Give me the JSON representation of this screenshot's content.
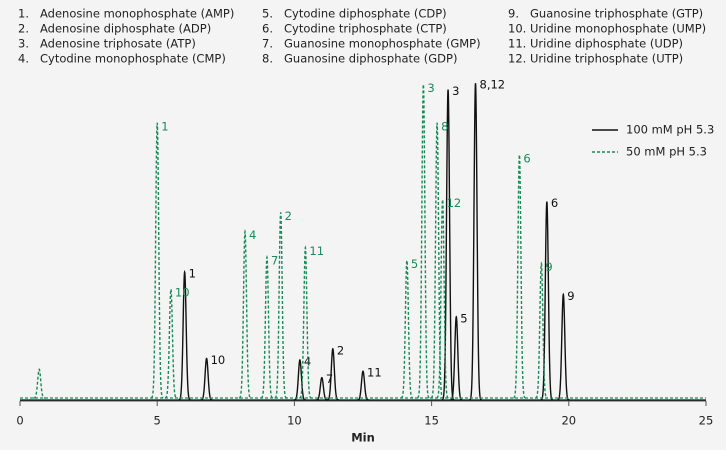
{
  "chart_data": {
    "type": "line",
    "compound_key": [
      {
        "number": "1.",
        "name": "Adenosine monophosphate (AMP)"
      },
      {
        "number": "2.",
        "name": "Adenosine diphosphate (ADP)"
      },
      {
        "number": "3.",
        "name": "Adenosine triphosate (ATP)"
      },
      {
        "number": "4.",
        "name": "Cytodine monophosphate (CMP)"
      },
      {
        "number": "5.",
        "name": "Cytodine diphosphate (CDP)"
      },
      {
        "number": "6.",
        "name": "Cytodine triphosphate (CTP)"
      },
      {
        "number": "7.",
        "name": "Guanosine monophosphate (GMP)"
      },
      {
        "number": "8.",
        "name": "Guanosine diphosphate (GDP)"
      },
      {
        "number": "9.",
        "name": "Guanosine triphosphate (GTP)"
      },
      {
        "number": "10.",
        "name": "Uridine monophosphate (UMP)"
      },
      {
        "number": "11.",
        "name": "Uridine diphosphate (UDP)"
      },
      {
        "number": "12.",
        "name": "Uridine triphosphate (UTP)"
      }
    ],
    "xlabel": "Min",
    "xlim": [
      0,
      25
    ],
    "xticks": [
      0,
      5,
      10,
      15,
      20,
      25
    ],
    "ylim": [
      0,
      100
    ],
    "series": [
      {
        "name": "100 mM pH 5.3",
        "color": "#111111",
        "dashed": false,
        "x": [
          6.0,
          6.8,
          10.2,
          11.0,
          11.4,
          12.5,
          15.6,
          15.9,
          16.6,
          19.2,
          19.8
        ],
        "values": [
          40,
          13,
          12.5,
          7,
          16,
          9,
          97,
          26,
          99,
          62,
          33
        ],
        "peak_labels": [
          "1",
          "10",
          "4",
          "7",
          "2",
          "11",
          "3",
          "5",
          "8,12",
          "6",
          "9"
        ]
      },
      {
        "name": "50 mM pH 5.3",
        "color": "#1a8a5a",
        "dashed": true,
        "x": [
          0.7,
          5.0,
          5.5,
          8.2,
          9.0,
          9.5,
          10.4,
          14.1,
          14.7,
          15.2,
          15.4,
          18.2,
          19.0
        ],
        "values": [
          9,
          86,
          34,
          52,
          44,
          58,
          47,
          43,
          98,
          86,
          62,
          76,
          42
        ],
        "peak_labels": [
          null,
          "1",
          "10",
          "4",
          "7",
          "2",
          "11",
          "5",
          "3",
          "8",
          "12",
          "6",
          "9"
        ]
      }
    ]
  }
}
